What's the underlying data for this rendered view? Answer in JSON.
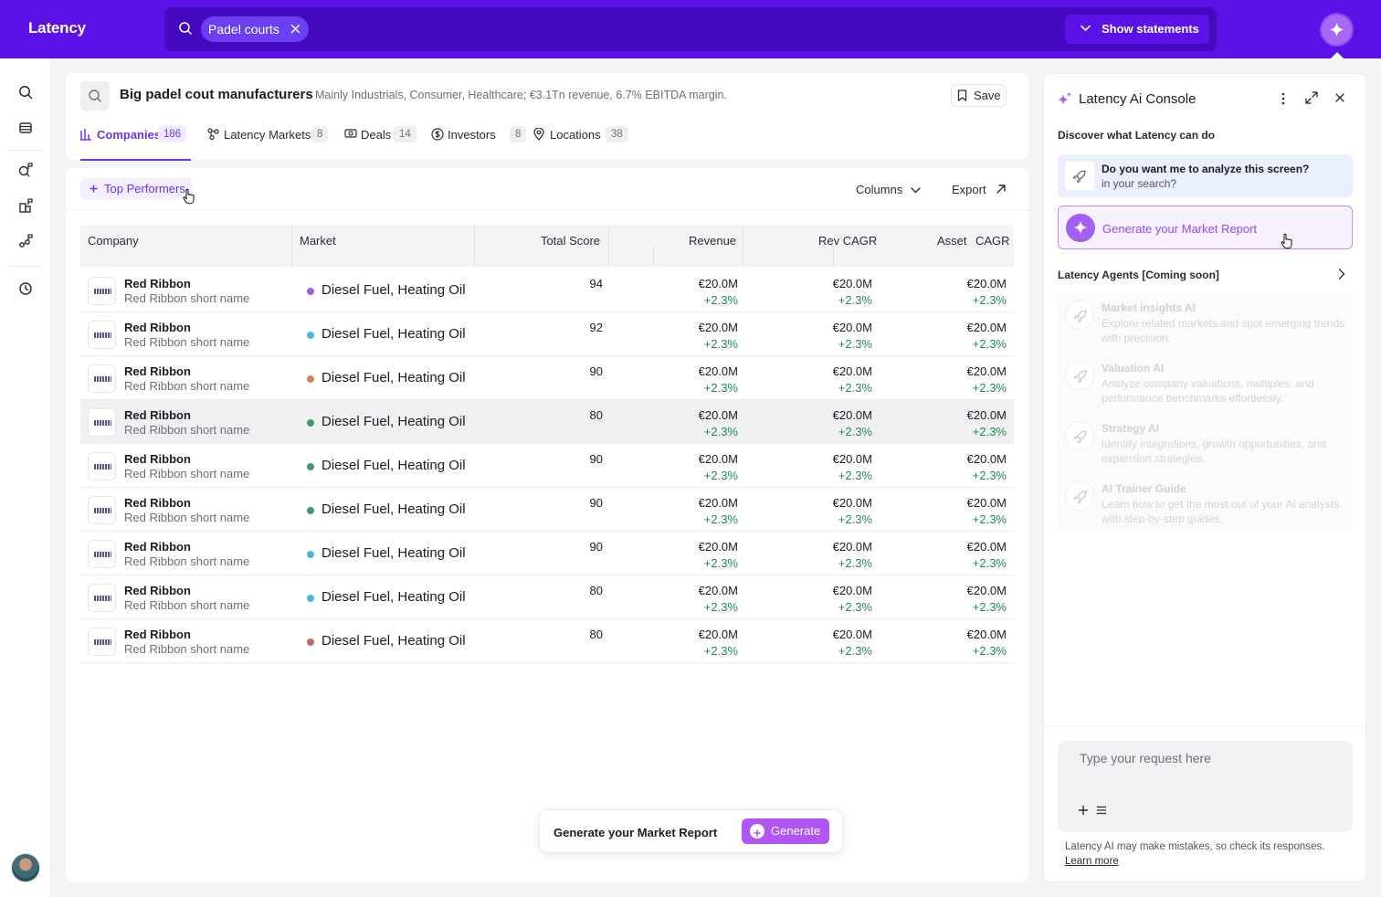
{
  "app": {
    "brand": "Latency"
  },
  "search": {
    "chip": "Padel courts",
    "show_statements": "Show statements"
  },
  "header": {
    "title": "Big padel cout manufacturers",
    "description": "Mainly Industrials, Consumer, Healthcare; €3.1Tn revenue, 6.7% EBITDA margin.",
    "save_label": "Save"
  },
  "tabs": [
    {
      "label": "Companies",
      "count": "186"
    },
    {
      "label": "Latency Markets",
      "count": "8"
    },
    {
      "label": "Deals",
      "count": "14"
    },
    {
      "label": "Investors",
      "count": "8"
    },
    {
      "label": "Locations",
      "count": "38"
    }
  ],
  "toolbar": {
    "filter_chip": "Top Performers",
    "columns": "Columns",
    "export": "Export"
  },
  "table": {
    "headers": {
      "company": "Company",
      "market": "Market",
      "total_score": "Total Score",
      "revenue": "Revenue",
      "rev_cagr": "Rev CAGR",
      "asset": "Asset",
      "cagr": "CAGR"
    },
    "rows": [
      {
        "name": "Red Ribbon",
        "short": "Red Ribbon short name",
        "market": "Diesel Fuel, Heating Oil",
        "dot": "#a05af0",
        "score": "94",
        "revenue": "€20.0M",
        "revenue_delta": "+2.3%",
        "rev_cagr": "€20.0M",
        "rev_cagr_delta": "+2.3%",
        "asset_cagr": "€20.0M",
        "asset_cagr_delta": "+2.3%"
      },
      {
        "name": "Red Ribbon",
        "short": "Red Ribbon short name",
        "market": "Diesel Fuel, Heating Oil",
        "dot": "#4bb6de",
        "score": "92",
        "revenue": "€20.0M",
        "revenue_delta": "+2.3%",
        "rev_cagr": "€20.0M",
        "rev_cagr_delta": "+2.3%",
        "asset_cagr": "€20.0M",
        "asset_cagr_delta": "+2.3%"
      },
      {
        "name": "Red Ribbon",
        "short": "Red Ribbon short name",
        "market": "Diesel Fuel, Heating Oil",
        "dot": "#e07a5f",
        "score": "90",
        "revenue": "€20.0M",
        "revenue_delta": "+2.3%",
        "rev_cagr": "€20.0M",
        "rev_cagr_delta": "+2.3%",
        "asset_cagr": "€20.0M",
        "asset_cagr_delta": "+2.3%"
      },
      {
        "name": "Red Ribbon",
        "short": "Red Ribbon short name",
        "market": "Diesel Fuel, Heating Oil",
        "dot": "#3f9a6b",
        "score": "80",
        "revenue": "€20.0M",
        "revenue_delta": "+2.3%",
        "rev_cagr": "€20.0M",
        "rev_cagr_delta": "+2.3%",
        "asset_cagr": "€20.0M",
        "asset_cagr_delta": "+2.3%"
      },
      {
        "name": "Red Ribbon",
        "short": "Red Ribbon short name",
        "market": "Diesel Fuel, Heating Oil",
        "dot": "#3f9a6b",
        "score": "90",
        "revenue": "€20.0M",
        "revenue_delta": "+2.3%",
        "rev_cagr": "€20.0M",
        "rev_cagr_delta": "+2.3%",
        "asset_cagr": "€20.0M",
        "asset_cagr_delta": "+2.3%"
      },
      {
        "name": "Red Ribbon",
        "short": "Red Ribbon short name",
        "market": "Diesel Fuel, Heating Oil",
        "dot": "#3f9a6b",
        "score": "90",
        "revenue": "€20.0M",
        "revenue_delta": "+2.3%",
        "rev_cagr": "€20.0M",
        "rev_cagr_delta": "+2.3%",
        "asset_cagr": "€20.0M",
        "asset_cagr_delta": "+2.3%"
      },
      {
        "name": "Red Ribbon",
        "short": "Red Ribbon short name",
        "market": "Diesel Fuel, Heating Oil",
        "dot": "#4bb6de",
        "score": "90",
        "revenue": "€20.0M",
        "revenue_delta": "+2.3%",
        "rev_cagr": "€20.0M",
        "rev_cagr_delta": "+2.3%",
        "asset_cagr": "€20.0M",
        "asset_cagr_delta": "+2.3%"
      },
      {
        "name": "Red Ribbon",
        "short": "Red Ribbon short name",
        "market": "Diesel Fuel, Heating Oil",
        "dot": "#4bb6de",
        "score": "80",
        "revenue": "€20.0M",
        "revenue_delta": "+2.3%",
        "rev_cagr": "€20.0M",
        "rev_cagr_delta": "+2.3%",
        "asset_cagr": "€20.0M",
        "asset_cagr_delta": "+2.3%"
      },
      {
        "name": "Red Ribbon",
        "short": "Red Ribbon short name",
        "market": "Diesel Fuel, Heating Oil",
        "dot": "#c86a6a",
        "score": "80",
        "revenue": "€20.0M",
        "revenue_delta": "+2.3%",
        "rev_cagr": "€20.0M",
        "rev_cagr_delta": "+2.3%",
        "asset_cagr": "€20.0M",
        "asset_cagr_delta": "+2.3%"
      }
    ]
  },
  "generate_bar": {
    "label": "Generate your Market Report",
    "button": "Generate"
  },
  "console": {
    "title": "Latency Ai Console",
    "discover": "Discover what Latency can do",
    "question_line1": "Do you want me to analyze this screen?",
    "question_line2": "in your search?",
    "generate": "Generate your Market Report",
    "agents_heading": "Latency Agents [Coming soon]",
    "agents": [
      {
        "name": "Market insights AI",
        "desc": "Explore related markets and spot emerging trends with precision."
      },
      {
        "name": "Valuation AI",
        "desc": "Analyze company valuations, multiples, and performance benchmarks effortlessly."
      },
      {
        "name": "Strategy AI",
        "desc": "Identify integrations, growth opportunities, and expansion strategies."
      },
      {
        "name": "AI Trainer Guide",
        "desc": "Learn how to get the most out of your AI analysts with step-by-step guides."
      }
    ],
    "input_placeholder": "Type your request here",
    "disclaimer": "Latency AI may make mistakes, so check its responses.",
    "learn_more": "Learn more"
  },
  "colors": {
    "brand": "#5a12e6",
    "accent": "#6d32f0",
    "positive": "#218a4c",
    "ai": "#a45ff3"
  }
}
